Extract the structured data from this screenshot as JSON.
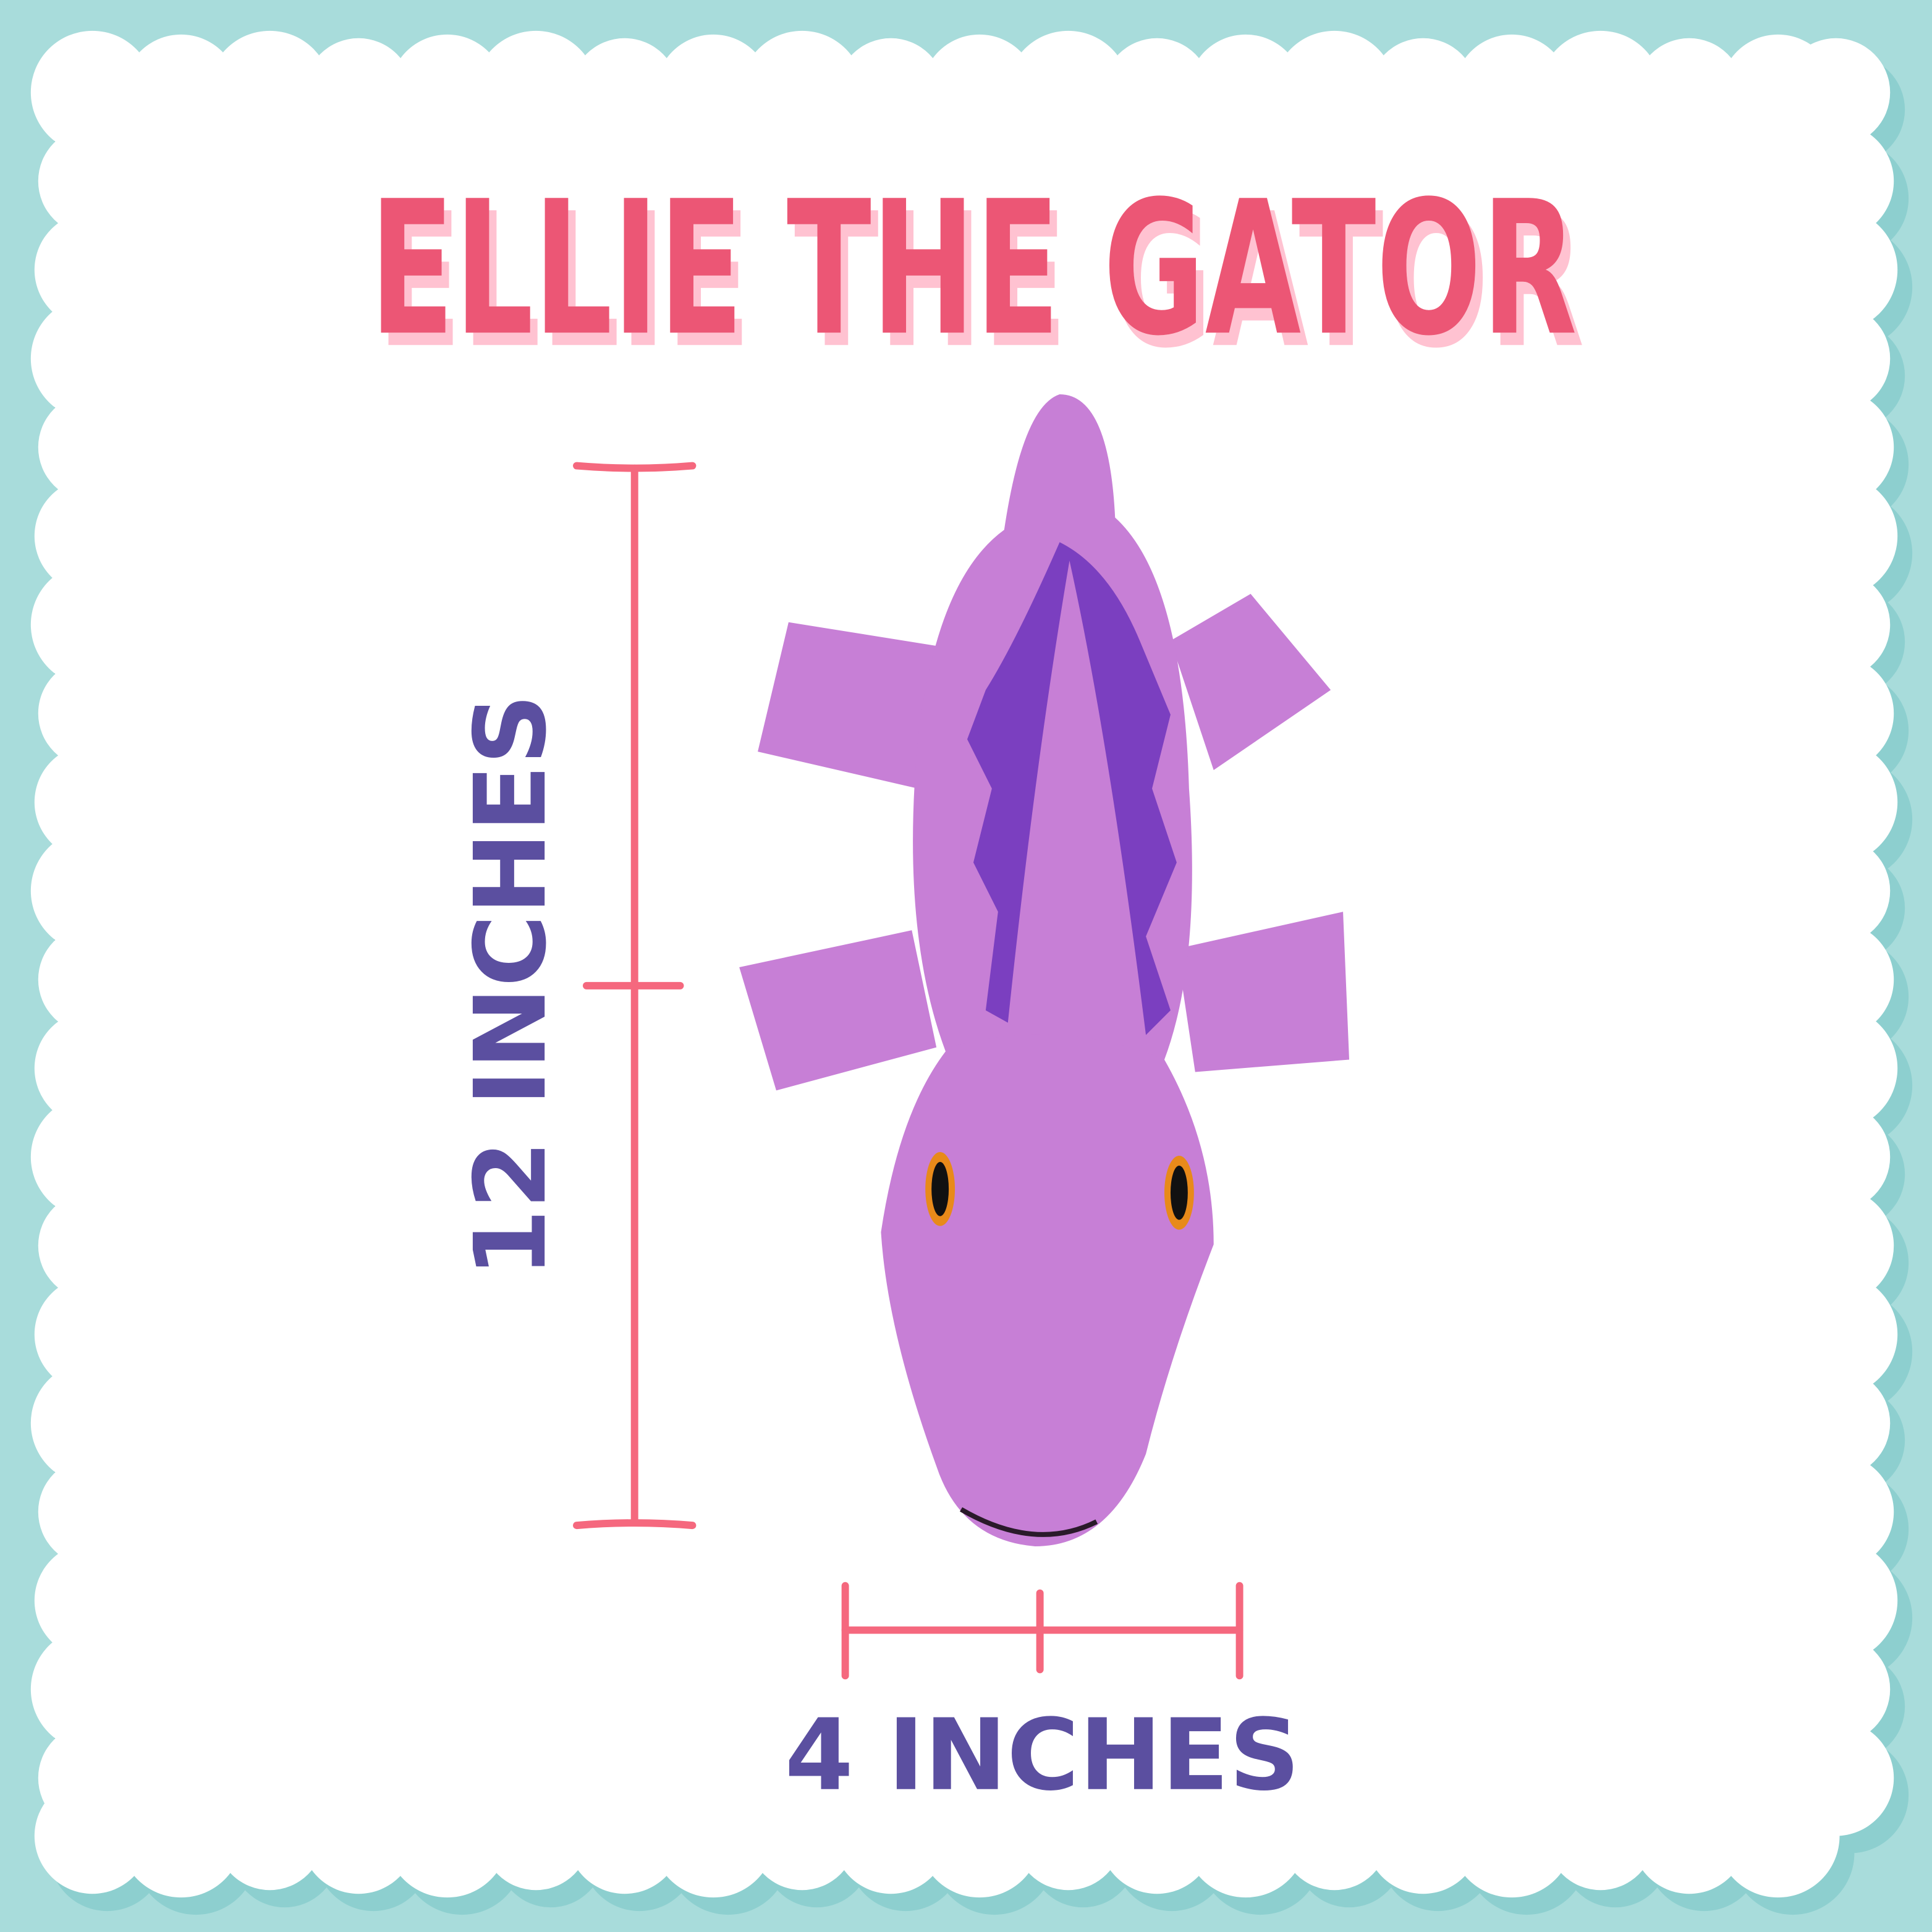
{
  "title": "ELLIE THE GATOR",
  "dimensions": {
    "length_label": "12 INCHES",
    "width_label": "4 INCHES"
  },
  "colors": {
    "background": "#a8dcdb",
    "scallop_shadow": "#8dcfcf",
    "title": "#ec5674",
    "title_shadow": "#ffc2d1",
    "measure_line": "#f5687e",
    "dimension_text": "#5b4fa0",
    "toy_body": "#c77fd6",
    "toy_spikes": "#7b3fc0"
  },
  "image": {
    "subject": "purple plush gator toy"
  }
}
